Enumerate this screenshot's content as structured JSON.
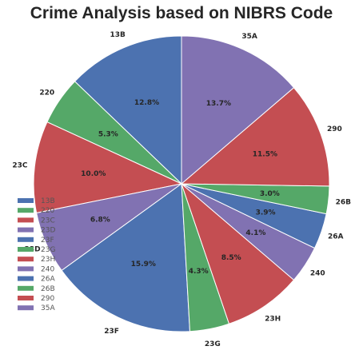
{
  "chart_data": {
    "type": "pie",
    "title": "Crime Analysis based on NIBRS Code",
    "categories": [
      "13B",
      "220",
      "23C",
      "23D",
      "23F",
      "23G",
      "23H",
      "240",
      "26A",
      "26B",
      "290",
      "35A"
    ],
    "values": [
      12.8,
      5.3,
      10.0,
      6.8,
      15.9,
      4.3,
      8.5,
      4.1,
      3.9,
      3.0,
      11.5,
      13.7
    ],
    "percent_labels": [
      "12.8%",
      "5.3%",
      "10.0%",
      "6.8%",
      "15.9%",
      "4.3%",
      "8.5%",
      "4.1%",
      "3.9%",
      "3.0%",
      "11.5%",
      "13.7%"
    ],
    "colors": [
      "#4c72b0",
      "#55a868",
      "#c44e52",
      "#8172b2",
      "#4c72b0",
      "#55a868",
      "#c44e52",
      "#8172b2",
      "#4c72b0",
      "#55a868",
      "#c44e52",
      "#8172b2"
    ],
    "start_angle_deg": 90,
    "direction": "counterclockwise",
    "legend": {
      "position": "lower-left",
      "entries": [
        "13B",
        "220",
        "23C",
        "23D",
        "23F",
        "23G",
        "23H",
        "240",
        "26A",
        "26B",
        "290",
        "35A"
      ]
    }
  }
}
